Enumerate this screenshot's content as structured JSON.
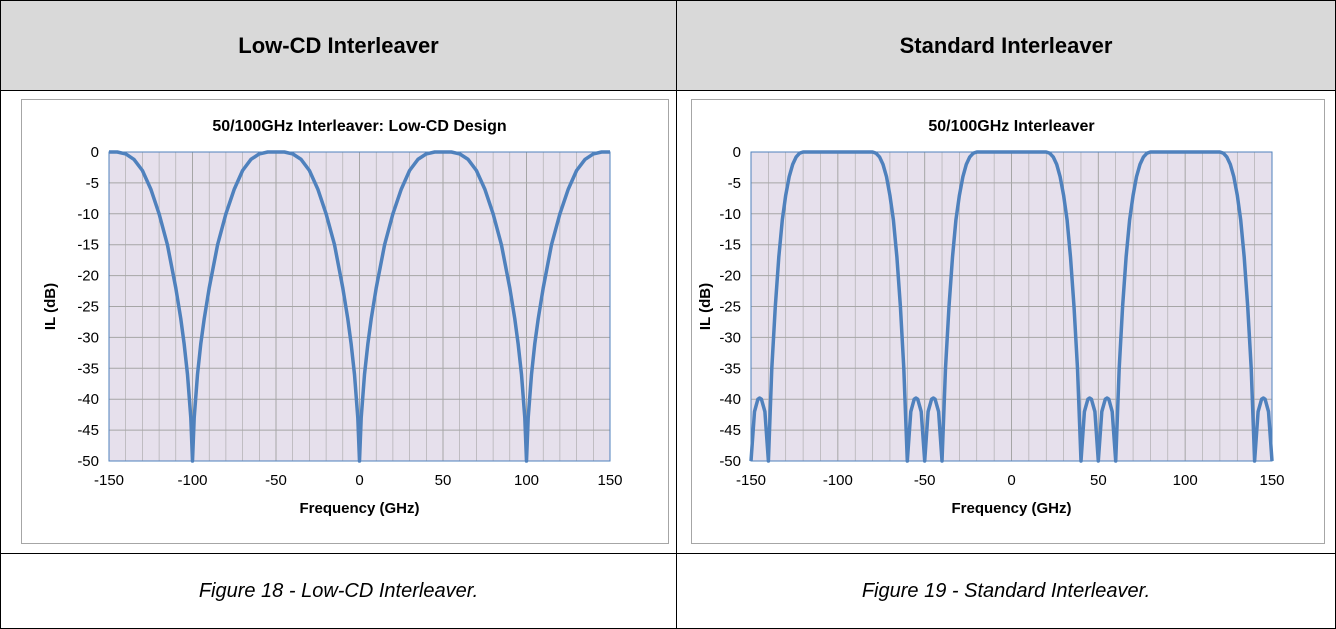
{
  "headers": {
    "left": "Low-CD Interleaver",
    "right": "Standard Interleaver"
  },
  "captions": {
    "left": "Figure 18 - Low-CD Interleaver.",
    "right": "Figure 19 - Standard Interleaver."
  },
  "colors": {
    "plot_bg": "#e6e0ec",
    "line": "#4f81bd",
    "grid": "#a6a6a6",
    "header_bg": "#d9d9d9"
  },
  "chart_data": [
    {
      "type": "line",
      "title": "50/100GHz Interleaver: Low-CD Design",
      "xlabel": "Frequency (GHz)",
      "ylabel": "IL (dB)",
      "xlim": [
        -150,
        150
      ],
      "ylim": [
        -50,
        0
      ],
      "xticks": [
        "-150",
        "-100",
        "-50",
        "0",
        "50",
        "100",
        "150"
      ],
      "yticks": [
        "0",
        "-5",
        "-10",
        "-15",
        "-20",
        "-25",
        "-30",
        "-35",
        "-40",
        "-45",
        "-50"
      ],
      "grid": true,
      "series": [
        {
          "x": [
            -150,
            -145,
            -140,
            -135,
            -130,
            -125,
            -120,
            -115,
            -110,
            -107,
            -105,
            -103,
            -101,
            -100,
            -99,
            -97,
            -95,
            -93,
            -90,
            -85,
            -80,
            -75,
            -70,
            -65,
            -60,
            -55,
            -50,
            -45,
            -40,
            -35,
            -30,
            -25,
            -20,
            -15,
            -10,
            -7,
            -5,
            -3,
            -1,
            0,
            1,
            3,
            5,
            7,
            10,
            15,
            20,
            25,
            30,
            35,
            40,
            45,
            50,
            55,
            60,
            65,
            70,
            75,
            80,
            85,
            90,
            93,
            95,
            97,
            99,
            100,
            101,
            103,
            105,
            107,
            110,
            115,
            120,
            125,
            130,
            135,
            140,
            145,
            150
          ],
          "y": [
            0,
            0,
            -0.3,
            -1.2,
            -3,
            -6,
            -10,
            -15,
            -22,
            -27,
            -31,
            -36,
            -43,
            -50,
            -43,
            -36,
            -31,
            -27,
            -22,
            -15,
            -10,
            -6,
            -3,
            -1.2,
            -0.3,
            0,
            0,
            0,
            -0.3,
            -1.2,
            -3,
            -6,
            -10,
            -15,
            -22,
            -27,
            -31,
            -36,
            -43,
            -50,
            -43,
            -36,
            -31,
            -27,
            -22,
            -15,
            -10,
            -6,
            -3,
            -1.2,
            -0.3,
            0,
            0,
            0,
            -0.3,
            -1.2,
            -3,
            -6,
            -10,
            -15,
            -22,
            -27,
            -31,
            -36,
            -43,
            -50,
            -43,
            -36,
            -31,
            -27,
            -22,
            -15,
            -10,
            -6,
            -3,
            -1.2,
            -0.3,
            0,
            0
          ]
        }
      ]
    },
    {
      "type": "line",
      "title": "50/100GHz Interleaver",
      "xlabel": "Frequency (GHz)",
      "ylabel": "IL (dB)",
      "xlim": [
        -150,
        150
      ],
      "ylim": [
        -50,
        0
      ],
      "xticks": [
        "-150",
        "-100",
        "-50",
        "0",
        "50",
        "100",
        "150"
      ],
      "yticks": [
        "0",
        "-5",
        "-10",
        "-15",
        "-20",
        "-25",
        "-30",
        "-35",
        "-40",
        "-45",
        "-50"
      ],
      "grid": true,
      "series": [
        {
          "x": [
            -150,
            -148,
            -146,
            -145,
            -144,
            -142,
            -140,
            -138,
            -136,
            -134,
            -132,
            -130,
            -128,
            -126,
            -124,
            -122,
            -120,
            -115,
            -110,
            -105,
            -100,
            -95,
            -90,
            -85,
            -80,
            -78,
            -76,
            -74,
            -72,
            -70,
            -68,
            -66,
            -64,
            -62,
            -60,
            -58,
            -56,
            -55,
            -54,
            -52,
            -50,
            -48,
            -46,
            -45,
            -44,
            -42,
            -40,
            -38,
            -36,
            -34,
            -32,
            -30,
            -28,
            -26,
            -24,
            -22,
            -20,
            -15,
            -10,
            -5,
            0,
            5,
            10,
            15,
            20,
            22,
            24,
            26,
            28,
            30,
            32,
            34,
            36,
            38,
            40,
            42,
            44,
            45,
            46,
            48,
            50,
            52,
            54,
            55,
            56,
            58,
            60,
            62,
            64,
            66,
            68,
            70,
            72,
            74,
            76,
            78,
            80,
            85,
            90,
            95,
            100,
            105,
            110,
            115,
            120,
            122,
            124,
            126,
            128,
            130,
            132,
            134,
            136,
            138,
            140,
            142,
            144,
            145,
            146,
            148,
            150
          ],
          "y": [
            -50,
            -42,
            -40,
            -39.8,
            -40,
            -42,
            -50,
            -35,
            -25,
            -17,
            -11,
            -7,
            -4,
            -2,
            -0.8,
            -0.2,
            0,
            0,
            0,
            0,
            0,
            0,
            0,
            0,
            0,
            -0.2,
            -0.8,
            -2,
            -4,
            -7,
            -11,
            -17,
            -25,
            -35,
            -50,
            -42,
            -40,
            -39.8,
            -40,
            -42,
            -50,
            -42,
            -40,
            -39.8,
            -40,
            -42,
            -50,
            -35,
            -25,
            -17,
            -11,
            -7,
            -4,
            -2,
            -0.8,
            -0.2,
            0,
            0,
            0,
            0,
            0,
            0,
            0,
            0,
            0,
            -0.2,
            -0.8,
            -2,
            -4,
            -7,
            -11,
            -17,
            -25,
            -35,
            -50,
            -42,
            -40,
            -39.8,
            -40,
            -42,
            -50,
            -42,
            -40,
            -39.8,
            -40,
            -42,
            -50,
            -35,
            -25,
            -17,
            -11,
            -7,
            -4,
            -2,
            -0.8,
            -0.2,
            0,
            0,
            0,
            0,
            0,
            0,
            0,
            0,
            0,
            -0.2,
            -0.8,
            -2,
            -4,
            -7,
            -11,
            -17,
            -25,
            -35,
            -50,
            -42,
            -40,
            -39.8,
            -40,
            -42,
            -50
          ]
        }
      ]
    }
  ]
}
